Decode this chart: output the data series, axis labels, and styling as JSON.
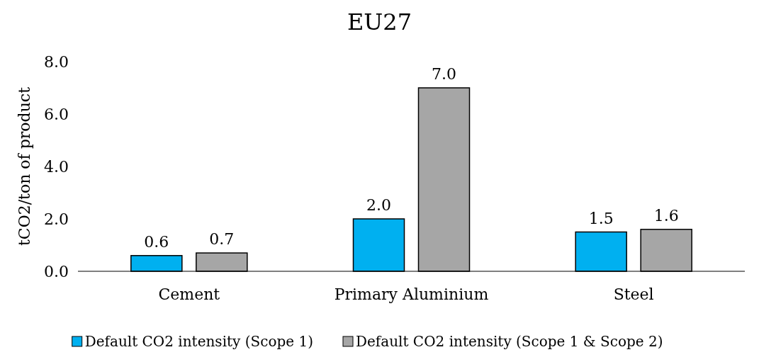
{
  "chart_data": {
    "type": "bar",
    "title": "EU27",
    "ylabel": "tCO2/ton of product",
    "categories": [
      "Cement",
      "Primary Aluminium",
      "Steel"
    ],
    "series": [
      {
        "name": "Default CO2 intensity (Scope 1)",
        "color": "#00b0f0",
        "values": [
          0.6,
          2.0,
          1.5
        ],
        "value_labels": [
          "0.6",
          "2.0",
          "1.5"
        ]
      },
      {
        "name": "Default CO2 intensity (Scope 1 & Scope 2)",
        "color": "#a6a6a6",
        "values": [
          0.7,
          7.0,
          1.6
        ],
        "value_labels": [
          "0.7",
          "7.0",
          "1.6"
        ]
      }
    ],
    "ylim": [
      0,
      8
    ],
    "yticks": [
      {
        "value": 0,
        "label": "0.0"
      },
      {
        "value": 2,
        "label": "2.0"
      },
      {
        "value": 4,
        "label": "4.0"
      },
      {
        "value": 6,
        "label": "6.0"
      },
      {
        "value": 8,
        "label": "8.0"
      }
    ],
    "grid": false,
    "legend": "bottom"
  }
}
